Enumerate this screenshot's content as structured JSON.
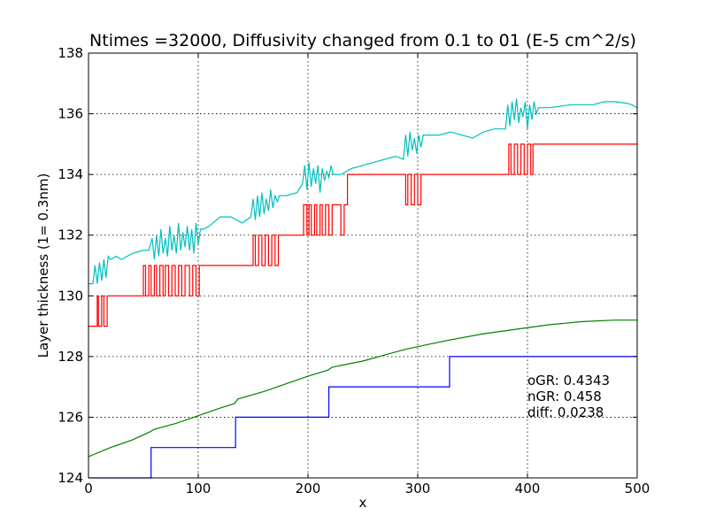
{
  "chart_data": {
    "type": "line",
    "title": "Ntimes =32000, Diffusivity changed from 0.1 to 01 (E-5 cm^2/s)",
    "xlabel": "x",
    "ylabel": "Layer thickness (1= 0.3nm)",
    "xlim": [
      0,
      500
    ],
    "ylim": [
      124,
      138
    ],
    "xticks": [
      0,
      100,
      200,
      300,
      400,
      500
    ],
    "yticks": [
      124,
      126,
      128,
      130,
      132,
      134,
      136,
      138
    ],
    "grid": true,
    "annotations": [
      "oGR: 0.4343",
      "nGR: 0.458",
      "diff: 0.0238"
    ],
    "series": [
      {
        "color": "#0000ff",
        "style": "step",
        "x": [
          0,
          57,
          57,
          134,
          134,
          219,
          219,
          329,
          329,
          500
        ],
        "y": [
          124,
          124,
          125,
          125,
          126,
          126,
          127,
          127,
          128,
          128
        ]
      },
      {
        "color": "#008000",
        "style": "line",
        "x": [
          0,
          20,
          40,
          55,
          60,
          80,
          100,
          120,
          133,
          136,
          160,
          180,
          200,
          218,
          222,
          250,
          270,
          290,
          310,
          330,
          360,
          390,
          420,
          450,
          480,
          500
        ],
        "y": [
          124.7,
          125.0,
          125.25,
          125.5,
          125.6,
          125.8,
          126.05,
          126.3,
          126.45,
          126.6,
          126.85,
          127.1,
          127.35,
          127.55,
          127.65,
          127.85,
          128.05,
          128.25,
          128.4,
          128.55,
          128.75,
          128.9,
          129.05,
          129.15,
          129.2,
          129.2
        ]
      },
      {
        "color": "#ff0000",
        "style": "line",
        "x": [
          0,
          8,
          8,
          9,
          9,
          12,
          12,
          14,
          14,
          17,
          17,
          50,
          50,
          52,
          52,
          55,
          55,
          57,
          57,
          60,
          60,
          62,
          62,
          65,
          65,
          68,
          68,
          70,
          70,
          73,
          73,
          76,
          76,
          79,
          79,
          82,
          82,
          85,
          85,
          88,
          88,
          92,
          92,
          95,
          95,
          98,
          98,
          101,
          101,
          150,
          150,
          152,
          152,
          155,
          155,
          158,
          158,
          161,
          161,
          164,
          164,
          167,
          167,
          170,
          170,
          173,
          173,
          196,
          196,
          199,
          199,
          201,
          201,
          203,
          203,
          206,
          206,
          208,
          208,
          211,
          211,
          213,
          213,
          216,
          216,
          219,
          219,
          222,
          222,
          230,
          230,
          233,
          233,
          236,
          236,
          289,
          289,
          291,
          291,
          294,
          294,
          297,
          297,
          300,
          300,
          303,
          303,
          383,
          383,
          385,
          385,
          388,
          388,
          391,
          391,
          394,
          394,
          397,
          397,
          400,
          400,
          403,
          403,
          405,
          405,
          500
        ],
        "y": [
          129,
          129,
          130,
          130,
          129,
          129,
          130,
          130,
          129,
          129,
          130,
          130,
          131,
          131,
          130,
          130,
          131,
          131,
          130,
          130,
          131,
          131,
          130,
          130,
          131,
          131,
          130,
          130,
          131,
          131,
          130,
          130,
          131,
          131,
          130,
          130,
          131,
          131,
          130,
          130,
          131,
          131,
          130,
          130,
          131,
          131,
          130,
          130,
          131,
          131,
          132,
          132,
          131,
          131,
          132,
          132,
          131,
          131,
          132,
          132,
          131,
          131,
          132,
          132,
          131,
          131,
          132,
          132,
          133,
          133,
          132,
          132,
          133,
          133,
          132,
          132,
          133,
          133,
          132,
          132,
          133,
          133,
          132,
          132,
          133,
          133,
          132,
          132,
          133,
          133,
          132,
          132,
          133,
          133,
          134,
          134,
          133,
          133,
          134,
          134,
          133,
          133,
          134,
          134,
          133,
          133,
          134,
          134,
          135,
          135,
          134,
          134,
          135,
          135,
          134,
          134,
          135,
          135,
          134,
          134,
          135,
          135,
          134,
          134,
          135,
          135
        ]
      },
      {
        "color": "#00bfbf",
        "style": "line",
        "x": [
          0,
          4,
          6,
          8,
          10,
          12,
          14,
          16,
          18,
          20,
          25,
          30,
          40,
          50,
          55,
          58,
          60,
          62,
          64,
          66,
          68,
          70,
          72,
          74,
          76,
          78,
          80,
          82,
          84,
          86,
          88,
          90,
          92,
          94,
          96,
          98,
          100,
          102,
          105,
          110,
          120,
          130,
          135,
          140,
          148,
          150,
          152,
          154,
          156,
          158,
          160,
          162,
          164,
          166,
          168,
          170,
          172,
          174,
          180,
          190,
          195,
          197,
          199,
          201,
          203,
          205,
          207,
          209,
          211,
          213,
          215,
          217,
          219,
          221,
          223,
          230,
          240,
          250,
          260,
          270,
          280,
          287,
          289,
          291,
          293,
          295,
          297,
          299,
          301,
          303,
          305,
          310,
          320,
          330,
          340,
          350,
          360,
          370,
          380,
          382,
          384,
          386,
          388,
          390,
          392,
          394,
          396,
          398,
          400,
          402,
          404,
          406,
          408,
          410,
          420,
          440,
          460,
          470,
          480,
          490,
          495,
          500
        ],
        "y": [
          130.4,
          130.4,
          131.0,
          130.4,
          131.1,
          130.5,
          131.2,
          130.6,
          131.3,
          131.2,
          131.3,
          131.2,
          131.4,
          131.5,
          131.5,
          131.9,
          131.2,
          132.0,
          131.3,
          132.2,
          131.4,
          131.9,
          131.3,
          132.3,
          131.5,
          132.0,
          131.4,
          132.4,
          131.5,
          132.1,
          131.6,
          132.3,
          131.5,
          132.2,
          131.4,
          132.4,
          131.7,
          132.2,
          132.2,
          132.3,
          132.6,
          132.6,
          132.5,
          132.4,
          132.6,
          133.2,
          132.5,
          133.3,
          132.6,
          133.4,
          132.7,
          133.2,
          132.8,
          133.5,
          132.9,
          133.3,
          133.1,
          133.3,
          133.3,
          133.4,
          133.7,
          134.3,
          133.5,
          134.4,
          133.6,
          134.2,
          133.7,
          134.3,
          133.4,
          134.2,
          133.8,
          134.1,
          133.9,
          134.3,
          134.0,
          134.0,
          134.2,
          134.3,
          134.4,
          134.5,
          134.6,
          134.5,
          135.3,
          134.6,
          135.4,
          134.8,
          135.2,
          134.7,
          135.3,
          134.9,
          135.3,
          135.3,
          135.3,
          135.4,
          135.3,
          135.2,
          135.4,
          135.5,
          135.5,
          136.3,
          135.6,
          136.4,
          135.8,
          136.5,
          135.7,
          136.2,
          135.9,
          136.4,
          135.5,
          136.3,
          135.8,
          136.4,
          136.0,
          136.2,
          136.2,
          136.3,
          136.3,
          136.4,
          136.4,
          136.35,
          136.3,
          136.2
        ]
      }
    ]
  }
}
